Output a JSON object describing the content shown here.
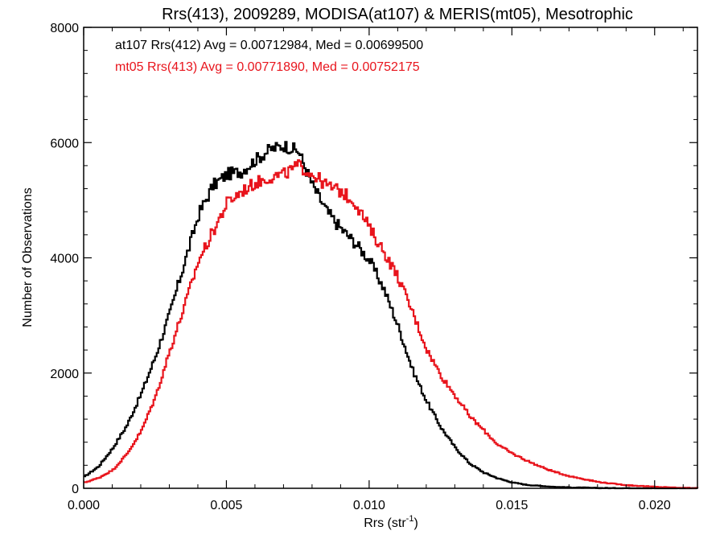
{
  "chart_data": {
    "type": "line",
    "step": true,
    "title": "Rrs(413), 2009289, MODISA(at107) & MERIS(mt05), Mesotrophic",
    "xlabel_main": "Rrs (str",
    "xlabel_sup": "-1",
    "xlabel_close": ")",
    "ylabel": "Number of Observations",
    "xlim": [
      0.0,
      0.0215
    ],
    "ylim": [
      0,
      8000
    ],
    "xticks": [
      0.0,
      0.005,
      0.01,
      0.015,
      0.02
    ],
    "xtick_labels": [
      "0.000",
      "0.005",
      "0.010",
      "0.015",
      "0.020"
    ],
    "yticks": [
      0,
      2000,
      4000,
      6000,
      8000
    ],
    "ytick_labels": [
      "0",
      "2000",
      "4000",
      "6000",
      "8000"
    ],
    "grid": false,
    "annotations": [
      {
        "text": "at107 Rrs(412) Avg = 0.00712984, Med = 0.00699500",
        "color": "#000000"
      },
      {
        "text": "mt05 Rrs(413) Avg = 0.00771890, Med = 0.00752175",
        "color": "#e8141c"
      }
    ],
    "series": [
      {
        "name": "at107",
        "color": "#000000",
        "x": [
          0.0,
          0.0005,
          0.001,
          0.0015,
          0.002,
          0.0025,
          0.003,
          0.0035,
          0.004,
          0.0045,
          0.005,
          0.0055,
          0.006,
          0.0065,
          0.007,
          0.0075,
          0.008,
          0.0085,
          0.009,
          0.0095,
          0.01,
          0.0105,
          0.011,
          0.0115,
          0.012,
          0.0125,
          0.013,
          0.0135,
          0.014,
          0.0145,
          0.015,
          0.0155,
          0.016,
          0.0165,
          0.017,
          0.0175,
          0.018,
          0.0185,
          0.019,
          0.0195,
          0.02,
          0.0205,
          0.021,
          0.0215
        ],
        "y": [
          200,
          380,
          700,
          1100,
          1650,
          2300,
          3050,
          3900,
          4750,
          5250,
          5450,
          5500,
          5700,
          5880,
          5950,
          5850,
          5250,
          4800,
          4500,
          4250,
          3950,
          3450,
          2800,
          2050,
          1500,
          1050,
          700,
          430,
          270,
          170,
          100,
          60,
          40,
          25,
          15,
          10,
          5,
          3,
          2,
          1,
          0,
          0,
          0,
          0
        ]
      },
      {
        "name": "mt05",
        "color": "#e8141c",
        "x": [
          0.0,
          0.0005,
          0.001,
          0.0015,
          0.002,
          0.0025,
          0.003,
          0.0035,
          0.004,
          0.0045,
          0.005,
          0.0055,
          0.006,
          0.0065,
          0.007,
          0.0075,
          0.008,
          0.0085,
          0.009,
          0.0095,
          0.01,
          0.0105,
          0.011,
          0.0115,
          0.012,
          0.0125,
          0.013,
          0.0135,
          0.014,
          0.0145,
          0.015,
          0.0155,
          0.016,
          0.0165,
          0.017,
          0.0175,
          0.018,
          0.0185,
          0.019,
          0.0195,
          0.02,
          0.0205,
          0.021,
          0.0215
        ],
        "y": [
          100,
          180,
          320,
          600,
          1000,
          1600,
          2400,
          3150,
          3950,
          4450,
          4950,
          5150,
          5300,
          5400,
          5450,
          5600,
          5450,
          5250,
          5150,
          4950,
          4500,
          4100,
          3650,
          3050,
          2400,
          1950,
          1600,
          1250,
          1000,
          750,
          600,
          480,
          370,
          280,
          210,
          160,
          110,
          80,
          55,
          40,
          25,
          15,
          8,
          3
        ]
      }
    ]
  }
}
